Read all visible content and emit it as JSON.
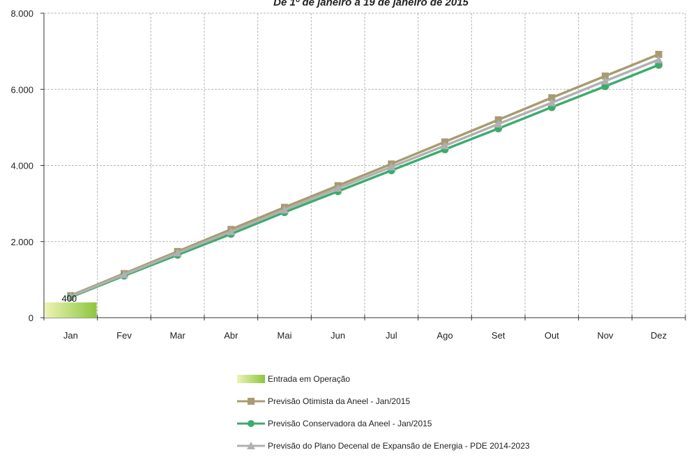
{
  "chart_data": {
    "type": "bar+line",
    "title": "De 1º de janeiro a 19 de janeiro de 2015",
    "categories": [
      "Jan",
      "Fev",
      "Mar",
      "Abr",
      "Mai",
      "Jun",
      "Jul",
      "Ago",
      "Set",
      "Out",
      "Nov",
      "Dez"
    ],
    "ylim": [
      0,
      8000
    ],
    "yticks": [
      "0",
      "2.000",
      "4.000",
      "6.000",
      "8.000"
    ],
    "ytick_values": [
      0,
      2000,
      4000,
      6000,
      8000
    ],
    "grid": true,
    "legend_position": "bottom",
    "bar_series": {
      "name": "Entrada em Operação",
      "values": [
        400,
        null,
        null,
        null,
        null,
        null,
        null,
        null,
        null,
        null,
        null,
        null
      ],
      "data_labels": [
        "400"
      ],
      "color_start": "#eef3b6",
      "color_end": "#8cc63f"
    },
    "series": [
      {
        "name": "Previsão Otimista da Aneel - Jan/2015",
        "values": [
          580,
          1160,
          1740,
          2320,
          2900,
          3470,
          4040,
          4620,
          5200,
          5780,
          6350,
          6920
        ],
        "color": "#a89b72",
        "marker": "square"
      },
      {
        "name": "Previsão Conservadora da Aneel - Jan/2015",
        "values": [
          540,
          1100,
          1650,
          2200,
          2770,
          3320,
          3870,
          4420,
          4970,
          5530,
          6080,
          6640
        ],
        "color": "#3dab6e",
        "marker": "circle"
      },
      {
        "name": "Previsão do Plano Decenal de Expansão de Energia - PDE 2014-2023",
        "values": [
          560,
          1130,
          1700,
          2260,
          2830,
          3400,
          3960,
          4520,
          5090,
          5650,
          6220,
          6780
        ],
        "color": "#b0b0b0",
        "marker": "triangle"
      }
    ]
  }
}
